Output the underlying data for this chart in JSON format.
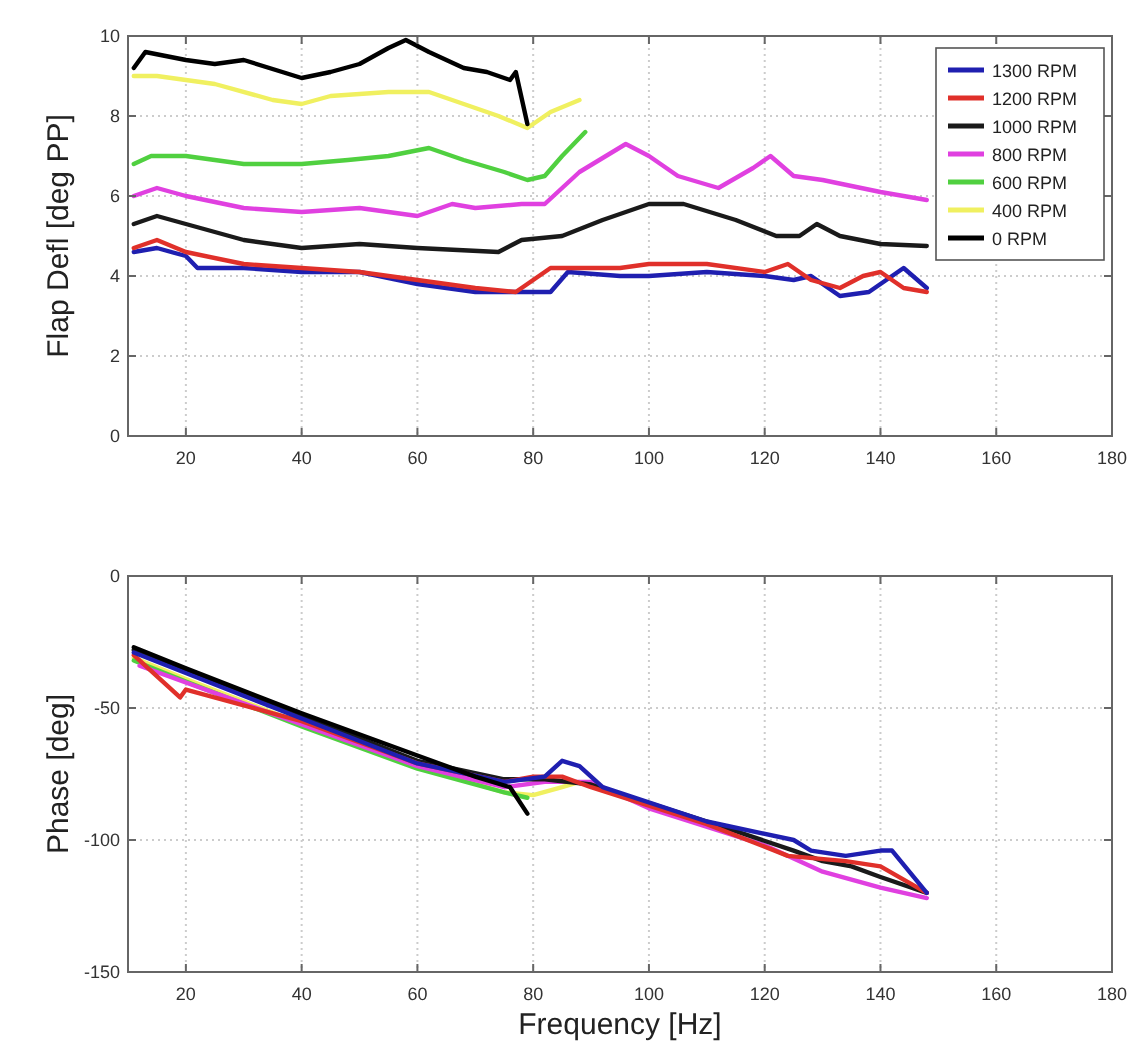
{
  "chart_data": [
    {
      "type": "line",
      "ylabel": "Flap Defl [deg PP]",
      "xlim": [
        10,
        180
      ],
      "xticks": [
        20,
        40,
        60,
        80,
        100,
        120,
        140,
        160,
        180
      ],
      "ylim": [
        0,
        10
      ],
      "yticks": [
        0,
        2,
        4,
        6,
        8,
        10
      ],
      "grid": true,
      "legend": "top right",
      "line_style": "solid",
      "marker": "none",
      "series": [
        {
          "name": "1300 RPM",
          "color": "#1f1fb0",
          "x": [
            11,
            15,
            20,
            22,
            30,
            40,
            50,
            60,
            70,
            78,
            83,
            86,
            95,
            100,
            110,
            120,
            125,
            128,
            133,
            138,
            144,
            148
          ],
          "values": [
            4.6,
            4.7,
            4.5,
            4.2,
            4.2,
            4.1,
            4.1,
            3.8,
            3.6,
            3.6,
            3.6,
            4.1,
            4.0,
            4.0,
            4.1,
            4.0,
            3.9,
            4.0,
            3.5,
            3.6,
            4.2,
            3.7
          ]
        },
        {
          "name": "1200 RPM",
          "color": "#e0302a",
          "x": [
            11,
            15,
            20,
            30,
            40,
            50,
            60,
            70,
            77,
            83,
            88,
            95,
            100,
            110,
            120,
            124,
            128,
            133,
            137,
            140,
            144,
            148
          ],
          "values": [
            4.7,
            4.9,
            4.6,
            4.3,
            4.2,
            4.1,
            3.9,
            3.7,
            3.6,
            4.2,
            4.2,
            4.2,
            4.3,
            4.3,
            4.1,
            4.3,
            3.9,
            3.7,
            4.0,
            4.1,
            3.7,
            3.6
          ]
        },
        {
          "name": "1000 RPM",
          "color": "#1a1a1a",
          "x": [
            11,
            15,
            20,
            30,
            40,
            50,
            60,
            74,
            78,
            85,
            92,
            100,
            106,
            115,
            122,
            126,
            129,
            133,
            140,
            148
          ],
          "values": [
            5.3,
            5.5,
            5.3,
            4.9,
            4.7,
            4.8,
            4.7,
            4.6,
            4.9,
            5.0,
            5.4,
            5.8,
            5.8,
            5.4,
            5.0,
            5.0,
            5.3,
            5.0,
            4.8,
            4.75
          ]
        },
        {
          "name": "800 RPM",
          "color": "#e040e0",
          "x": [
            11,
            15,
            20,
            30,
            40,
            50,
            60,
            66,
            70,
            78,
            82,
            88,
            96,
            100,
            105,
            112,
            118,
            121,
            125,
            130,
            140,
            148
          ],
          "values": [
            6.0,
            6.2,
            6.0,
            5.7,
            5.6,
            5.7,
            5.5,
            5.8,
            5.7,
            5.8,
            5.8,
            6.6,
            7.3,
            7.0,
            6.5,
            6.2,
            6.7,
            7.0,
            6.5,
            6.4,
            6.1,
            5.9
          ]
        },
        {
          "name": "600 RPM",
          "color": "#50d040",
          "x": [
            11,
            14,
            20,
            30,
            40,
            48,
            55,
            62,
            68,
            75,
            79,
            82,
            85,
            89
          ],
          "values": [
            6.8,
            7.0,
            7.0,
            6.8,
            6.8,
            6.9,
            7.0,
            7.2,
            6.9,
            6.6,
            6.4,
            6.5,
            7.0,
            7.6
          ]
        },
        {
          "name": "400 RPM",
          "color": "#f0f060",
          "x": [
            11,
            15,
            25,
            35,
            40,
            45,
            55,
            62,
            68,
            74,
            79,
            83,
            88
          ],
          "values": [
            9.0,
            9.0,
            8.8,
            8.4,
            8.3,
            8.5,
            8.6,
            8.6,
            8.3,
            8.0,
            7.7,
            8.1,
            8.4
          ]
        },
        {
          "name": "0 RPM",
          "color": "#000000",
          "x": [
            11,
            13,
            20,
            25,
            30,
            40,
            45,
            50,
            55,
            58,
            62,
            68,
            72,
            76,
            77,
            79
          ],
          "values": [
            9.2,
            9.6,
            9.4,
            9.3,
            9.4,
            8.95,
            9.1,
            9.3,
            9.7,
            9.9,
            9.6,
            9.2,
            9.1,
            8.9,
            9.1,
            7.8
          ]
        }
      ]
    },
    {
      "type": "line",
      "xlabel": "Frequency [Hz]",
      "ylabel": "Phase [deg]",
      "xlim": [
        10,
        180
      ],
      "xticks": [
        20,
        40,
        60,
        80,
        100,
        120,
        140,
        160,
        180
      ],
      "ylim": [
        -150,
        0
      ],
      "yticks": [
        -150,
        -100,
        -50,
        0
      ],
      "grid": true,
      "line_style": "solid",
      "marker": "none",
      "series": [
        {
          "color": "#f0f060",
          "x": [
            11,
            20,
            40,
            60,
            75,
            80,
            85,
            88
          ],
          "values": [
            -31,
            -39,
            -56,
            -72,
            -82,
            -83,
            -80,
            -78
          ]
        },
        {
          "color": "#50d040",
          "x": [
            11,
            20,
            40,
            60,
            75,
            79
          ],
          "values": [
            -32,
            -40,
            -57,
            -73,
            -82,
            -84
          ]
        },
        {
          "color": "#e040e0",
          "x": [
            12,
            60,
            75,
            82,
            90,
            100,
            120,
            130,
            140,
            148
          ],
          "values": [
            -34,
            -72,
            -80,
            -78,
            -78,
            -88,
            -102,
            -112,
            -118,
            -122
          ]
        },
        {
          "color": "#1a1a1a",
          "x": [
            11,
            40,
            60,
            75,
            82,
            90,
            110,
            125,
            130,
            135,
            140,
            148
          ],
          "values": [
            -28,
            -53,
            -70,
            -77,
            -77,
            -79,
            -93,
            -104,
            -108,
            -110,
            -114,
            -120
          ]
        },
        {
          "color": "#e0302a",
          "x": [
            11,
            19,
            20,
            40,
            60,
            75,
            80,
            85,
            90,
            110,
            124,
            134,
            140,
            148
          ],
          "values": [
            -30,
            -46,
            -43,
            -55,
            -71,
            -78,
            -76,
            -76,
            -80,
            -94,
            -106,
            -108,
            -110,
            -120
          ]
        },
        {
          "color": "#1f1fb0",
          "x": [
            11,
            40,
            60,
            75,
            82,
            85,
            88,
            92,
            110,
            125,
            128,
            134,
            140,
            142,
            148
          ],
          "values": [
            -29,
            -54,
            -71,
            -78,
            -76,
            -70,
            -72,
            -80,
            -93,
            -100,
            -104,
            -106,
            -104,
            -104,
            -120
          ]
        },
        {
          "color": "#000000",
          "x": [
            11,
            20,
            40,
            60,
            70,
            76,
            79
          ],
          "values": [
            -27,
            -35,
            -52,
            -68,
            -76,
            -80,
            -90
          ]
        }
      ]
    }
  ]
}
